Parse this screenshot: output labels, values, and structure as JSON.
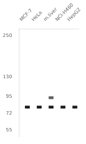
{
  "chart_data": {
    "type": "scatter",
    "categories": [
      "MCF-7",
      "HeLa",
      "m.liver",
      "NCI-H460",
      "HepG2"
    ],
    "series": [
      {
        "color": "#1a1a1a",
        "marker": "dash",
        "values": [
          80,
          80,
          80,
          80,
          80
        ]
      },
      {
        "color": "#606060",
        "marker": "dash",
        "values": [
          null,
          null,
          93,
          null,
          null
        ]
      }
    ],
    "log": "y",
    "ylim": [
      50,
      280
    ],
    "yticks": [
      55,
      72,
      95,
      130,
      250
    ],
    "grid": false
  }
}
